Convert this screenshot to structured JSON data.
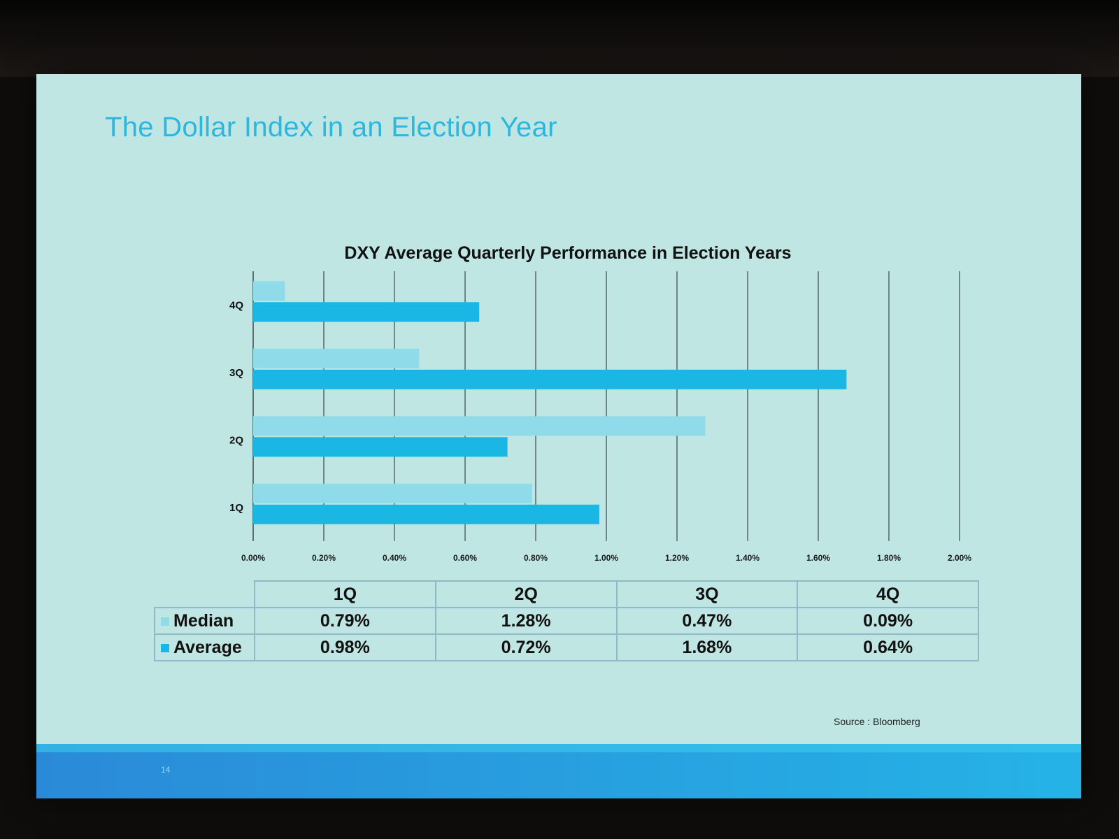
{
  "slide": {
    "title": "The Dollar Index in an Election Year",
    "source": "Source : Bloomberg",
    "page_number": "14"
  },
  "colors": {
    "median": "#8fdbe9",
    "average": "#1ab7e4"
  },
  "chart_data": {
    "type": "bar",
    "orientation": "horizontal",
    "title": "DXY Average Quarterly Performance in Election Years",
    "categories": [
      "1Q",
      "2Q",
      "3Q",
      "4Q"
    ],
    "series": [
      {
        "name": "Median",
        "values": [
          0.79,
          1.28,
          0.47,
          0.09
        ]
      },
      {
        "name": "Average",
        "values": [
          0.98,
          0.72,
          1.68,
          0.64
        ]
      }
    ],
    "xlim": [
      0,
      2.0
    ],
    "xticks": [
      0,
      0.2,
      0.4,
      0.6,
      0.8,
      1.0,
      1.2,
      1.4,
      1.6,
      1.8,
      2.0
    ],
    "xtick_labels": [
      "0.00%",
      "0.20%",
      "0.40%",
      "0.60%",
      "0.80%",
      "1.00%",
      "1.20%",
      "1.40%",
      "1.60%",
      "1.80%",
      "2.00%"
    ],
    "grid": "vertical",
    "data_table": {
      "headers": [
        "1Q",
        "2Q",
        "3Q",
        "4Q"
      ],
      "rows": [
        {
          "name": "Median",
          "cells": [
            "0.79%",
            "1.28%",
            "0.47%",
            "0.09%"
          ]
        },
        {
          "name": "Average",
          "cells": [
            "0.98%",
            "0.72%",
            "1.68%",
            "0.64%"
          ]
        }
      ]
    }
  }
}
